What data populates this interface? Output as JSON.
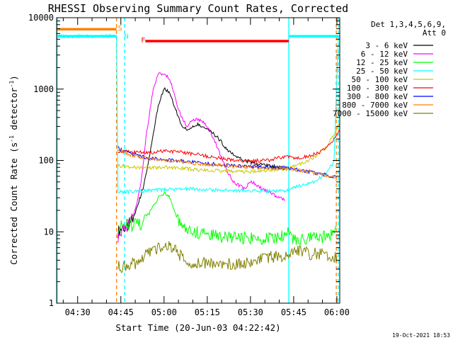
{
  "chart_data": {
    "type": "line",
    "title": "RHESSI Observing Summary Count Rates, Corrected",
    "xlabel": "Start Time (20-Jun-03 04:22:42)",
    "ylabel_main": "Corrected Count Rate (s",
    "ylabel_sup1": "-1",
    "ylabel_mid": " detector",
    "ylabel_sup2": "-1",
    "ylabel_end": ")",
    "y_scale": "log",
    "ylim": [
      1,
      10000
    ],
    "xlim_min": [
      262.7,
      361
    ],
    "x_ticks": [
      {
        "t": 270,
        "label": "04:30"
      },
      {
        "t": 285,
        "label": "04:45"
      },
      {
        "t": 300,
        "label": "05:00"
      },
      {
        "t": 315,
        "label": "05:15"
      },
      {
        "t": 330,
        "label": "05:30"
      },
      {
        "t": 345,
        "label": "05:45"
      },
      {
        "t": 360,
        "label": "06:00"
      }
    ],
    "y_ticks": [
      {
        "v": 1,
        "label": "1"
      },
      {
        "v": 10,
        "label": "10"
      },
      {
        "v": 100,
        "label": "100"
      },
      {
        "v": 1000,
        "label": "1000"
      },
      {
        "v": 10000,
        "label": "10000"
      }
    ],
    "legend_header": [
      "Det 1,3,4,5,6,9,",
      "Att 0"
    ],
    "series": [
      {
        "name": "3 - 6 keV",
        "color": "#000000",
        "points": [
          [
            284,
            10
          ],
          [
            286,
            12
          ],
          [
            288,
            13
          ],
          [
            290,
            18
          ],
          [
            293,
            45
          ],
          [
            296,
            200
          ],
          [
            298,
            600
          ],
          [
            300,
            1000
          ],
          [
            302,
            900
          ],
          [
            304,
            520
          ],
          [
            306,
            320
          ],
          [
            308,
            260
          ],
          [
            310,
            290
          ],
          [
            312,
            320
          ],
          [
            314,
            290
          ],
          [
            316,
            260
          ],
          [
            318,
            220
          ],
          [
            320,
            180
          ],
          [
            322,
            140
          ],
          [
            325,
            115
          ],
          [
            328,
            100
          ],
          [
            332,
            90
          ],
          [
            336,
            85
          ],
          [
            340,
            80
          ],
          [
            342,
            75
          ]
        ]
      },
      {
        "name": "6 - 12 keV",
        "color": "#ff00ff",
        "points": [
          [
            284,
            8
          ],
          [
            286,
            11
          ],
          [
            288,
            13
          ],
          [
            290,
            20
          ],
          [
            292,
            50
          ],
          [
            294,
            250
          ],
          [
            296,
            900
          ],
          [
            298,
            1600
          ],
          [
            300,
            1700
          ],
          [
            302,
            1400
          ],
          [
            304,
            700
          ],
          [
            306,
            400
          ],
          [
            308,
            300
          ],
          [
            310,
            370
          ],
          [
            312,
            380
          ],
          [
            314,
            330
          ],
          [
            316,
            250
          ],
          [
            318,
            170
          ],
          [
            320,
            110
          ],
          [
            322,
            70
          ],
          [
            324,
            50
          ],
          [
            326,
            45
          ],
          [
            328,
            40
          ],
          [
            330,
            52
          ],
          [
            332,
            45
          ],
          [
            335,
            38
          ],
          [
            338,
            33
          ],
          [
            342,
            28
          ]
        ]
      },
      {
        "name": "12 - 25 keV",
        "color": "#00ff00",
        "points": [
          [
            284,
            12
          ],
          [
            288,
            12
          ],
          [
            292,
            13
          ],
          [
            294,
            16
          ],
          [
            296,
            22
          ],
          [
            298,
            30
          ],
          [
            300,
            35
          ],
          [
            302,
            30
          ],
          [
            304,
            18
          ],
          [
            306,
            12
          ],
          [
            310,
            10
          ],
          [
            320,
            8.5
          ],
          [
            330,
            8
          ],
          [
            340,
            8
          ],
          [
            343,
            10
          ],
          [
            345,
            8
          ],
          [
            350,
            8
          ],
          [
            355,
            8.5
          ],
          [
            358,
            9
          ],
          [
            360,
            12
          ]
        ]
      },
      {
        "name": "25 - 50 keV",
        "color": "#00ffff",
        "points": [
          [
            262.7,
            5500
          ],
          [
            283.5,
            5500
          ],
          [
            284,
            36
          ],
          [
            290,
            37
          ],
          [
            300,
            39
          ],
          [
            310,
            40
          ],
          [
            320,
            38
          ],
          [
            330,
            38
          ],
          [
            338,
            37
          ],
          [
            342,
            38
          ],
          [
            344,
            40
          ],
          [
            348,
            45
          ],
          [
            352,
            50
          ],
          [
            356,
            65
          ],
          [
            359,
            95
          ],
          [
            360.5,
            5500
          ],
          [
            361,
            5500
          ]
        ]
      },
      {
        "name": "50 - 100 keV",
        "color": "#c8c800",
        "points": [
          [
            284,
            85
          ],
          [
            290,
            80
          ],
          [
            296,
            78
          ],
          [
            300,
            80
          ],
          [
            306,
            78
          ],
          [
            312,
            74
          ],
          [
            318,
            72
          ],
          [
            324,
            70
          ],
          [
            330,
            70
          ],
          [
            336,
            72
          ],
          [
            340,
            75
          ],
          [
            344,
            80
          ],
          [
            348,
            92
          ],
          [
            352,
            110
          ],
          [
            356,
            150
          ],
          [
            359,
            230
          ],
          [
            361,
            340
          ]
        ]
      },
      {
        "name": "100 - 300 keV",
        "color": "#ff0000",
        "points": [
          [
            284,
            135
          ],
          [
            290,
            130
          ],
          [
            296,
            130
          ],
          [
            300,
            135
          ],
          [
            306,
            130
          ],
          [
            312,
            120
          ],
          [
            318,
            110
          ],
          [
            324,
            100
          ],
          [
            330,
            98
          ],
          [
            336,
            100
          ],
          [
            340,
            110
          ],
          [
            343,
            115
          ],
          [
            346,
            105
          ],
          [
            350,
            115
          ],
          [
            354,
            130
          ],
          [
            357,
            160
          ],
          [
            359,
            200
          ],
          [
            361,
            260
          ]
        ]
      },
      {
        "name": "300 - 800 keV",
        "color": "#0000ff",
        "points": [
          [
            284,
            150
          ],
          [
            288,
            125
          ],
          [
            294,
            110
          ],
          [
            300,
            103
          ],
          [
            306,
            98
          ],
          [
            312,
            92
          ],
          [
            318,
            88
          ],
          [
            324,
            85
          ],
          [
            330,
            82
          ],
          [
            336,
            80
          ],
          [
            342,
            79
          ],
          [
            346,
            75
          ],
          [
            350,
            70
          ],
          [
            354,
            65
          ],
          [
            358,
            60
          ],
          [
            360,
            58
          ]
        ]
      },
      {
        "name": "800 - 7000 keV",
        "color": "#ff8000",
        "points": [
          [
            284,
            145
          ],
          [
            288,
            120
          ],
          [
            294,
            108
          ],
          [
            300,
            100
          ],
          [
            306,
            96
          ],
          [
            312,
            90
          ],
          [
            318,
            86
          ],
          [
            324,
            83
          ],
          [
            330,
            80
          ],
          [
            336,
            78
          ],
          [
            342,
            77
          ],
          [
            346,
            74
          ],
          [
            350,
            69
          ],
          [
            354,
            64
          ],
          [
            358,
            60
          ],
          [
            360,
            57
          ]
        ]
      },
      {
        "name": "7000 - 15000 keV",
        "color": "#808000",
        "points": [
          [
            284,
            3.2
          ],
          [
            290,
            3.6
          ],
          [
            296,
            5.5
          ],
          [
            300,
            6.5
          ],
          [
            304,
            5.5
          ],
          [
            308,
            3.5
          ],
          [
            316,
            3.8
          ],
          [
            324,
            3.5
          ],
          [
            332,
            3.8
          ],
          [
            338,
            4.5
          ],
          [
            342,
            4.2
          ],
          [
            345,
            5.5
          ],
          [
            350,
            5
          ],
          [
            356,
            4.8
          ],
          [
            360,
            4.5
          ]
        ]
      }
    ],
    "annotations": [
      {
        "text": "S",
        "color": "#ff8000",
        "t": 283.5,
        "y": 7300
      },
      {
        "text": "N",
        "color": "#00ffff",
        "t": 285.7,
        "y": 5600
      },
      {
        "text": "F",
        "color": "#ff0000",
        "t": 291.5,
        "y": 4900
      }
    ],
    "flag_bars": [
      {
        "name": "saa-flag",
        "color": "#ff8000",
        "t0": 262.7,
        "t1": 283.5,
        "y": 6900
      },
      {
        "name": "night-flag-left",
        "color": "#00ffff",
        "t0": 262.7,
        "t1": 283.5,
        "y": 5500
      },
      {
        "name": "night-flag-right",
        "color": "#00ffff",
        "t0": 343.3,
        "t1": 360.5,
        "y": 5500
      },
      {
        "name": "flare-flag",
        "color": "#ff0000",
        "t0": 293.5,
        "t1": 343.3,
        "y": 4700
      }
    ],
    "vlines": [
      {
        "color": "#ff8000",
        "t": 283.5,
        "dash": true
      },
      {
        "color": "#00ffff",
        "t": 286.3,
        "dash": true
      },
      {
        "color": "#00ffff",
        "t": 360.5,
        "dash": true
      },
      {
        "color": "#ff8000",
        "t": 359.8,
        "dash": true
      },
      {
        "color": "#00ffff",
        "t": 262.9,
        "dash": false
      },
      {
        "color": "#00ffff",
        "t": 343.3,
        "dash": false
      }
    ],
    "footer_date": "19-Oct-2021 18:53"
  }
}
